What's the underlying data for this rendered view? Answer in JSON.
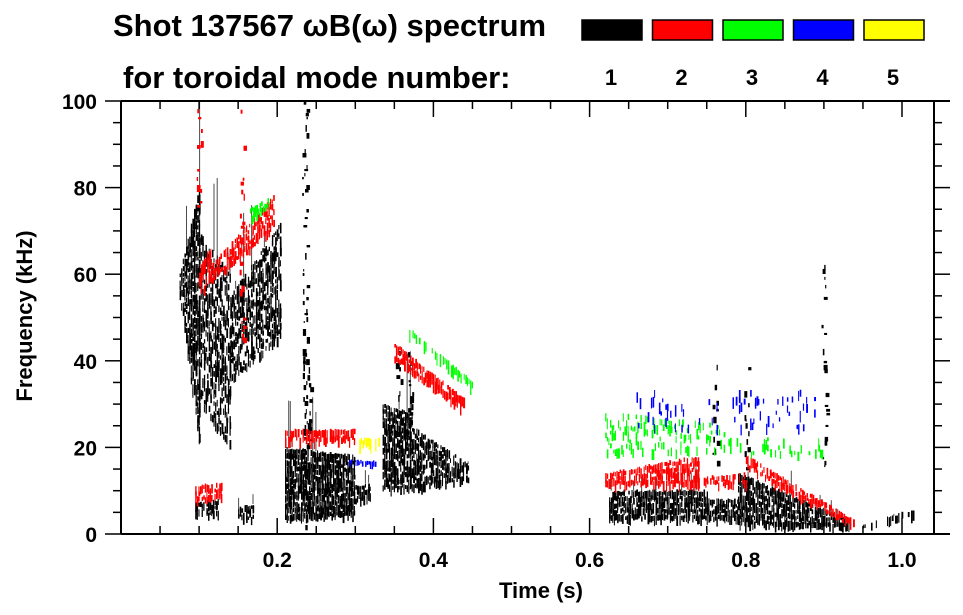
{
  "chart_data": {
    "type": "heatmap",
    "title_line1": "Shot 137567 ωB(ω) spectrum",
    "title_line2": "for toroidal mode number:",
    "xlabel": "Time (s)",
    "ylabel": "Frequency (kHz)",
    "xlim": [
      0.0,
      1.04
    ],
    "ylim": [
      0,
      100
    ],
    "x_ticks": [
      0.2,
      0.4,
      0.6,
      0.8,
      1.0
    ],
    "x_tick_labels": [
      "0.2",
      "0.4",
      "0.6",
      "0.8",
      "1.0"
    ],
    "x_minor_step": 0.05,
    "y_ticks": [
      0,
      20,
      40,
      60,
      80,
      100
    ],
    "y_tick_labels": [
      "0",
      "20",
      "40",
      "60",
      "80",
      "100"
    ],
    "y_minor_step": 5,
    "grid": false,
    "legend": {
      "placement": "top-right",
      "entries": [
        {
          "label": "1",
          "color": "#000000"
        },
        {
          "label": "2",
          "color": "#ff0000"
        },
        {
          "label": "3",
          "color": "#00ff00"
        },
        {
          "label": "4",
          "color": "#0000ff"
        },
        {
          "label": "5",
          "color": "#ffff00"
        }
      ]
    },
    "series": [
      {
        "name": "n=1",
        "color": "#000000",
        "features": [
          {
            "kind": "band",
            "t": [
              0.075,
              0.1
            ],
            "f_low": [
              55,
              20
            ],
            "f_high": [
              60,
              80
            ],
            "density": 0.85
          },
          {
            "kind": "band",
            "t": [
              0.1,
              0.14
            ],
            "f_low": [
              30,
              20
            ],
            "f_high": [
              70,
              60
            ],
            "density": 0.6
          },
          {
            "kind": "band",
            "t": [
              0.14,
              0.205
            ],
            "f_low": [
              35,
              45
            ],
            "f_high": [
              55,
              72
            ],
            "density": 0.7
          },
          {
            "kind": "streak",
            "t": 0.235,
            "f": [
              2,
              100
            ],
            "density": 0.55
          },
          {
            "kind": "streak",
            "t": 0.24,
            "f": [
              20,
              45
            ],
            "density": 0.6
          },
          {
            "kind": "band",
            "t": [
              0.21,
              0.3
            ],
            "f_low": [
              3,
              4
            ],
            "f_high": [
              20,
              18
            ],
            "density": 0.95
          },
          {
            "kind": "band",
            "t": [
              0.3,
              0.32
            ],
            "f_low": [
              7,
              8
            ],
            "f_high": [
              11,
              12
            ],
            "density": 0.8
          },
          {
            "kind": "band",
            "t": [
              0.095,
              0.125
            ],
            "f_low": [
              4,
              4
            ],
            "f_high": [
              7,
              8
            ],
            "density": 0.7
          },
          {
            "kind": "band",
            "t": [
              0.15,
              0.17
            ],
            "f_low": [
              3,
              3
            ],
            "f_high": [
              6,
              7
            ],
            "density": 0.7
          },
          {
            "kind": "band",
            "t": [
              0.335,
              0.37
            ],
            "f_low": [
              10,
              10
            ],
            "f_high": [
              30,
              28
            ],
            "density": 0.85
          },
          {
            "kind": "band",
            "t": [
              0.37,
              0.445
            ],
            "f_low": [
              10,
              12
            ],
            "f_high": [
              25,
              16
            ],
            "density": 0.75
          },
          {
            "kind": "streak",
            "t": 0.355,
            "f": [
              25,
              45
            ],
            "density": 0.6
          },
          {
            "kind": "streak",
            "t": 0.37,
            "f": [
              22,
              42
            ],
            "density": 0.5
          },
          {
            "kind": "band",
            "t": [
              0.625,
              0.75
            ],
            "f_low": [
              3,
              3
            ],
            "f_high": [
              10,
              10
            ],
            "density": 0.9
          },
          {
            "kind": "band",
            "t": [
              0.75,
              0.79
            ],
            "f_low": [
              3,
              3
            ],
            "f_high": [
              8,
              8
            ],
            "density": 0.8
          },
          {
            "kind": "band",
            "t": [
              0.79,
              0.935
            ],
            "f_low": [
              2,
              1
            ],
            "f_high": [
              14,
              3
            ],
            "density": 0.9
          },
          {
            "kind": "band",
            "t": [
              0.95,
              1.02
            ],
            "f_low": [
              1,
              4
            ],
            "f_high": [
              2,
              6
            ],
            "density": 0.5
          },
          {
            "kind": "streak",
            "t": 0.76,
            "f": [
              15,
              40
            ],
            "density": 0.3
          },
          {
            "kind": "streak",
            "t": 0.8,
            "f": [
              15,
              45
            ],
            "density": 0.3
          },
          {
            "kind": "streak",
            "t": 0.9,
            "f": [
              15,
              64
            ],
            "density": 0.3
          }
        ]
      },
      {
        "name": "n=2",
        "color": "#ff0000",
        "features": [
          {
            "kind": "streak",
            "t": 0.1,
            "f": [
              70,
              100
            ],
            "density": 0.3
          },
          {
            "kind": "streak",
            "t": 0.155,
            "f": [
              45,
              98
            ],
            "density": 0.35
          },
          {
            "kind": "band",
            "t": [
              0.1,
              0.115
            ],
            "f_low": [
              55,
              58
            ],
            "f_high": [
              62,
              66
            ],
            "density": 0.6
          },
          {
            "kind": "band",
            "t": [
              0.115,
              0.195
            ],
            "f_low": [
              58,
              70
            ],
            "f_high": [
              62,
              78
            ],
            "density": 0.7
          },
          {
            "kind": "band",
            "t": [
              0.095,
              0.13
            ],
            "f_low": [
              7,
              8
            ],
            "f_high": [
              11,
              12
            ],
            "density": 0.6
          },
          {
            "kind": "band",
            "t": [
              0.21,
              0.3
            ],
            "f_low": [
              21,
              21
            ],
            "f_high": [
              24,
              24
            ],
            "density": 0.8
          },
          {
            "kind": "band",
            "t": [
              0.35,
              0.44
            ],
            "f_low": [
              40,
              28
            ],
            "f_high": [
              44,
              31
            ],
            "density": 0.85
          },
          {
            "kind": "band",
            "t": [
              0.62,
              0.74
            ],
            "f_low": [
              11,
              11
            ],
            "f_high": [
              14,
              18
            ],
            "density": 0.8
          },
          {
            "kind": "band",
            "t": [
              0.74,
              0.8
            ],
            "f_low": [
              11,
              11
            ],
            "f_high": [
              13,
              14
            ],
            "density": 0.6
          },
          {
            "kind": "band",
            "t": [
              0.8,
              0.94
            ],
            "f_low": [
              15,
              1
            ],
            "f_high": [
              18,
              3
            ],
            "density": 0.8
          }
        ]
      },
      {
        "name": "n=3",
        "color": "#00ff00",
        "features": [
          {
            "kind": "band",
            "t": [
              0.165,
              0.19
            ],
            "f_low": [
              72,
              76
            ],
            "f_high": [
              75,
              78
            ],
            "density": 0.7
          },
          {
            "kind": "band",
            "t": [
              0.365,
              0.45
            ],
            "f_low": [
              46,
              33
            ],
            "f_high": [
              48,
              35
            ],
            "density": 0.6
          },
          {
            "kind": "band",
            "t": [
              0.62,
              0.78
            ],
            "f_low": [
              18,
              19
            ],
            "f_high": [
              28,
              25
            ],
            "density": 0.25
          },
          {
            "kind": "band",
            "t": [
              0.78,
              0.9
            ],
            "f_low": [
              18,
              18
            ],
            "f_high": [
              22,
              22
            ],
            "density": 0.2
          }
        ]
      },
      {
        "name": "n=4",
        "color": "#0000ff",
        "features": [
          {
            "kind": "band",
            "t": [
              0.29,
              0.325
            ],
            "f_low": [
              16,
              16
            ],
            "f_high": [
              17,
              17
            ],
            "density": 0.8
          },
          {
            "kind": "band",
            "t": [
              0.66,
              0.9
            ],
            "f_low": [
              24,
              24
            ],
            "f_high": [
              33,
              33
            ],
            "density": 0.08
          }
        ]
      },
      {
        "name": "n=5",
        "color": "#ffff00",
        "features": [
          {
            "kind": "band",
            "t": [
              0.305,
              0.33
            ],
            "f_low": [
              20,
              20
            ],
            "f_high": [
              22,
              22
            ],
            "density": 0.8
          }
        ]
      }
    ]
  }
}
